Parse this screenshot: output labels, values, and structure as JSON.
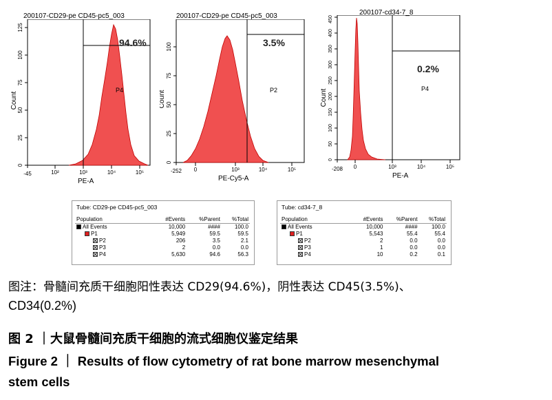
{
  "plots": [
    {
      "title": "200107-CD29-pe CD45-pc5_003",
      "xlabel": "PE-A",
      "ylabel": "Count",
      "yticks": [
        "0",
        "25",
        "50",
        "75",
        "100",
        "125"
      ],
      "xticks": [
        "-45",
        "10²",
        "10³",
        "10⁴",
        "10⁵"
      ],
      "gate_label": "P4",
      "percent": "94.6%"
    },
    {
      "title": "200107-CD29-pe CD45-pc5_003",
      "xlabel": "PE-Cy5-A",
      "ylabel": "Count",
      "yticks": [
        "0",
        "25",
        "50",
        "75",
        "100"
      ],
      "xticks": [
        "-252",
        "0",
        "10³",
        "10⁴",
        "10⁵"
      ],
      "gate_label": "P2",
      "percent": "3.5%"
    },
    {
      "title": "200107-cd34-7_8",
      "xlabel": "PE-A",
      "ylabel": "Count",
      "yticks": [
        "0",
        "50",
        "100",
        "150",
        "200",
        "250",
        "300",
        "350",
        "400",
        "450"
      ],
      "xticks": [
        "-208",
        "0",
        "10³",
        "10⁴",
        "10⁵"
      ],
      "gate_label": "P4",
      "percent": "0.2%"
    }
  ],
  "tables": [
    {
      "tube": "Tube:  CD29-pe CD45-pc5_003",
      "headers": [
        "Population",
        "#Events",
        "%Parent",
        "%Total"
      ],
      "rows": [
        {
          "name": "All Events",
          "events": "10,000",
          "parent": "####",
          "total": "100.0"
        },
        {
          "name": "P1",
          "events": "5,949",
          "parent": "59.5",
          "total": "59.5"
        },
        {
          "name": "P2",
          "events": "206",
          "parent": "3.5",
          "total": "2.1"
        },
        {
          "name": "P3",
          "events": "2",
          "parent": "0.0",
          "total": "0.0"
        },
        {
          "name": "P4",
          "events": "5,630",
          "parent": "94.6",
          "total": "56.3"
        }
      ]
    },
    {
      "tube": "Tube:  cd34-7_8",
      "headers": [
        "Population",
        "#Events",
        "%Parent",
        "%Total"
      ],
      "rows": [
        {
          "name": "All Events",
          "events": "10,000",
          "parent": "####",
          "total": "100.0"
        },
        {
          "name": "P1",
          "events": "5,543",
          "parent": "55.4",
          "total": "55.4"
        },
        {
          "name": "P2",
          "events": "2",
          "parent": "0.0",
          "total": "0.0"
        },
        {
          "name": "P3",
          "events": "1",
          "parent": "0.0",
          "total": "0.0"
        },
        {
          "name": "P4",
          "events": "10",
          "parent": "0.2",
          "total": "0.1"
        }
      ]
    }
  ],
  "caption": {
    "note_line1": "图注：骨髓间充质干细胞阳性表达 CD29(94.6%)，阴性表达 CD45(3.5%)、",
    "note_line2": "CD34(0.2%)",
    "title_cn": "图 2 ｜大鼠骨髓间充质干细胞的流式细胞仪鉴定结果",
    "title_en_line1": "Figure 2  ｜  Results of flow cytometry of rat bone marrow mesenchymal",
    "title_en_line2": "stem cells"
  },
  "colors": {
    "histogram": "#f05050",
    "histogram_edge": "#c00000",
    "square_black": "#000000",
    "square_red": "#e02020"
  }
}
